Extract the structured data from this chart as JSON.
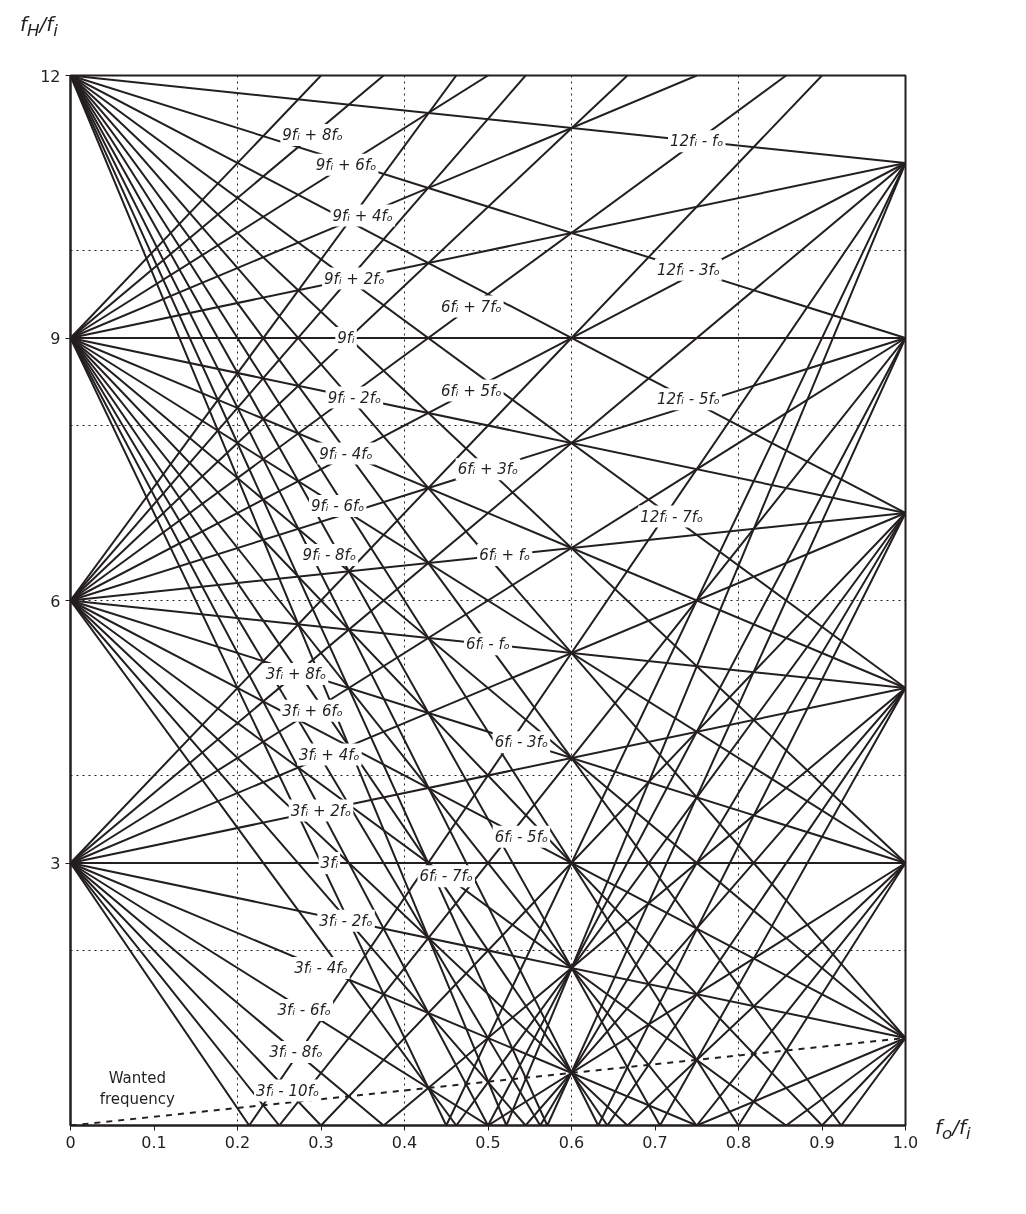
{
  "chart_data": {
    "type": "line",
    "xlabel": "f$_{o}$/f$_{i}$",
    "ylabel": "f$_{H}$/f$_{i}$",
    "xlim": [
      0,
      1
    ],
    "ylim": [
      0,
      12
    ],
    "xticks": [
      0,
      0.1,
      0.2,
      0.3,
      0.4,
      0.5,
      0.6,
      0.7,
      0.8,
      0.9,
      {
        "value": 1,
        "label": "1.0"
      }
    ],
    "yticks": [
      3,
      6,
      9,
      12
    ],
    "grid": false,
    "ref_lines": [
      {
        "axis": "x",
        "value": 0.2,
        "line_style": "dotted"
      },
      {
        "axis": "x",
        "value": 0.4,
        "line_style": "dotted"
      },
      {
        "axis": "x",
        "value": 0.6,
        "line_style": "dotted"
      },
      {
        "axis": "x",
        "value": 0.8,
        "line_style": "dotted"
      },
      {
        "axis": "y",
        "value": 2,
        "line_style": "dotted"
      },
      {
        "axis": "y",
        "value": 4,
        "line_style": "dotted"
      },
      {
        "axis": "y",
        "value": 6,
        "line_style": "dotted"
      },
      {
        "axis": "y",
        "value": 8,
        "line_style": "dotted"
      },
      {
        "axis": "y",
        "value": 10,
        "line_style": "dotted"
      }
    ],
    "series": [
      {
        "color": "#231f20",
        "x": [
          0,
          1
        ],
        "values": [
          0,
          1
        ],
        "line_style": "dashed"
      },
      {
        "color": "#231f20",
        "x": [
          0,
          0.214,
          1
        ],
        "values": [
          3,
          0,
          11
        ]
      },
      {
        "color": "#231f20",
        "x": [
          0,
          0.25,
          1
        ],
        "values": [
          3,
          0,
          9
        ]
      },
      {
        "color": "#231f20",
        "x": [
          0,
          0.3,
          1
        ],
        "values": [
          3,
          0,
          7
        ]
      },
      {
        "color": "#231f20",
        "x": [
          0,
          0.375,
          1
        ],
        "values": [
          3,
          0,
          5
        ]
      },
      {
        "color": "#231f20",
        "x": [
          0,
          0.5,
          1
        ],
        "values": [
          3,
          0,
          3
        ]
      },
      {
        "color": "#231f20",
        "x": [
          0,
          0.75,
          1
        ],
        "values": [
          3,
          0,
          1
        ]
      },
      {
        "color": "#231f20",
        "x": [
          0,
          1
        ],
        "values": [
          3,
          1
        ]
      },
      {
        "color": "#231f20",
        "x": [
          0,
          1
        ],
        "values": [
          3,
          3
        ]
      },
      {
        "color": "#231f20",
        "x": [
          0,
          1
        ],
        "values": [
          3,
          5
        ]
      },
      {
        "color": "#231f20",
        "x": [
          0,
          1
        ],
        "values": [
          3,
          7
        ]
      },
      {
        "color": "#231f20",
        "x": [
          0,
          1
        ],
        "values": [
          3,
          9
        ]
      },
      {
        "color": "#231f20",
        "x": [
          0,
          1
        ],
        "values": [
          3,
          11
        ]
      },
      {
        "color": "#231f20",
        "x": [
          0,
          0.9
        ],
        "values": [
          3,
          12
        ]
      },
      {
        "color": "#231f20",
        "x": [
          0,
          0.462,
          1
        ],
        "values": [
          6,
          0,
          7
        ]
      },
      {
        "color": "#231f20",
        "x": [
          0,
          0.545,
          1
        ],
        "values": [
          6,
          0,
          5
        ]
      },
      {
        "color": "#231f20",
        "x": [
          0,
          0.667,
          1
        ],
        "values": [
          6,
          0,
          3
        ]
      },
      {
        "color": "#231f20",
        "x": [
          0,
          0.857,
          1
        ],
        "values": [
          6,
          0,
          1
        ]
      },
      {
        "color": "#231f20",
        "x": [
          0,
          1
        ],
        "values": [
          6,
          1
        ]
      },
      {
        "color": "#231f20",
        "x": [
          0,
          1
        ],
        "values": [
          6,
          3
        ]
      },
      {
        "color": "#231f20",
        "x": [
          0,
          1
        ],
        "values": [
          6,
          5
        ]
      },
      {
        "color": "#231f20",
        "x": [
          0,
          1
        ],
        "values": [
          6,
          7
        ]
      },
      {
        "color": "#231f20",
        "x": [
          0,
          1
        ],
        "values": [
          6,
          9
        ]
      },
      {
        "color": "#231f20",
        "x": [
          0,
          1
        ],
        "values": [
          6,
          11
        ]
      },
      {
        "color": "#231f20",
        "x": [
          0,
          0.857
        ],
        "values": [
          6,
          12
        ]
      },
      {
        "color": "#231f20",
        "x": [
          0,
          0.667
        ],
        "values": [
          6,
          12
        ]
      },
      {
        "color": "#231f20",
        "x": [
          0,
          0.545
        ],
        "values": [
          6,
          12
        ]
      },
      {
        "color": "#231f20",
        "x": [
          0,
          0.462
        ],
        "values": [
          6,
          12
        ]
      },
      {
        "color": "#231f20",
        "x": [
          0,
          0.45,
          1
        ],
        "values": [
          9,
          0,
          11
        ]
      },
      {
        "color": "#231f20",
        "x": [
          0,
          0.5,
          1
        ],
        "values": [
          9,
          0,
          9
        ]
      },
      {
        "color": "#231f20",
        "x": [
          0,
          0.5625,
          1
        ],
        "values": [
          9,
          0,
          7
        ]
      },
      {
        "color": "#231f20",
        "x": [
          0,
          0.643,
          1
        ],
        "values": [
          9,
          0,
          5
        ]
      },
      {
        "color": "#231f20",
        "x": [
          0,
          0.75,
          1
        ],
        "values": [
          9,
          0,
          3
        ]
      },
      {
        "color": "#231f20",
        "x": [
          0,
          0.9,
          1
        ],
        "values": [
          9,
          0,
          1
        ]
      },
      {
        "color": "#231f20",
        "x": [
          0,
          1
        ],
        "values": [
          9,
          1
        ]
      },
      {
        "color": "#231f20",
        "x": [
          0,
          1
        ],
        "values": [
          9,
          3
        ]
      },
      {
        "color": "#231f20",
        "x": [
          0,
          1
        ],
        "values": [
          9,
          5
        ]
      },
      {
        "color": "#231f20",
        "x": [
          0,
          1
        ],
        "values": [
          9,
          7
        ]
      },
      {
        "color": "#231f20",
        "x": [
          0,
          1
        ],
        "values": [
          9,
          9
        ]
      },
      {
        "color": "#231f20",
        "x": [
          0,
          1
        ],
        "values": [
          9,
          11
        ]
      },
      {
        "color": "#231f20",
        "x": [
          0,
          0.75
        ],
        "values": [
          9,
          12
        ]
      },
      {
        "color": "#231f20",
        "x": [
          0,
          0.5
        ],
        "values": [
          9,
          12
        ]
      },
      {
        "color": "#231f20",
        "x": [
          0,
          0.375
        ],
        "values": [
          9,
          12
        ]
      },
      {
        "color": "#231f20",
        "x": [
          0,
          0.3
        ],
        "values": [
          9,
          12
        ]
      },
      {
        "color": "#231f20",
        "x": [
          0,
          0.522,
          1
        ],
        "values": [
          12,
          0,
          11
        ]
      },
      {
        "color": "#231f20",
        "x": [
          0,
          0.571,
          1
        ],
        "values": [
          12,
          0,
          9
        ]
      },
      {
        "color": "#231f20",
        "x": [
          0,
          0.632,
          1
        ],
        "values": [
          12,
          0,
          7
        ]
      },
      {
        "color": "#231f20",
        "x": [
          0,
          0.706,
          1
        ],
        "values": [
          12,
          0,
          5
        ]
      },
      {
        "color": "#231f20",
        "x": [
          0,
          0.8,
          1
        ],
        "values": [
          12,
          0,
          3
        ]
      },
      {
        "color": "#231f20",
        "x": [
          0,
          0.923,
          1
        ],
        "values": [
          12,
          0,
          1
        ]
      },
      {
        "color": "#231f20",
        "x": [
          0,
          1
        ],
        "values": [
          12,
          1
        ]
      },
      {
        "color": "#231f20",
        "x": [
          0,
          1
        ],
        "values": [
          12,
          3
        ]
      },
      {
        "color": "#231f20",
        "x": [
          0,
          1
        ],
        "values": [
          12,
          5
        ]
      },
      {
        "color": "#231f20",
        "x": [
          0,
          1
        ],
        "values": [
          12,
          7
        ]
      },
      {
        "color": "#231f20",
        "x": [
          0,
          1
        ],
        "values": [
          12,
          9
        ]
      },
      {
        "color": "#231f20",
        "x": [
          0,
          1
        ],
        "values": [
          12,
          11
        ]
      }
    ],
    "annotations": [
      {
        "text": "9fᵢ + 8fₒ",
        "x": 0.29,
        "y": 11.32
      },
      {
        "text": "9fᵢ + 6fₒ",
        "x": 0.33,
        "y": 10.98
      },
      {
        "text": "9fᵢ + 4fₒ",
        "x": 0.35,
        "y": 10.4
      },
      {
        "text": "9fᵢ + 2fₒ",
        "x": 0.34,
        "y": 9.68
      },
      {
        "text": "9fᵢ",
        "x": 0.33,
        "y": 9
      },
      {
        "text": "9fᵢ - 2fₒ",
        "x": 0.34,
        "y": 8.32
      },
      {
        "text": "9fᵢ - 4fₒ",
        "x": 0.33,
        "y": 7.68
      },
      {
        "text": "9fᵢ - 6fₒ",
        "x": 0.32,
        "y": 7.08
      },
      {
        "text": "9fᵢ - 8fₒ",
        "x": 0.31,
        "y": 6.52
      },
      {
        "text": "3fᵢ + 8fₒ",
        "x": 0.27,
        "y": 5.16
      },
      {
        "text": "3fᵢ + 6fₒ",
        "x": 0.29,
        "y": 4.74
      },
      {
        "text": "3fᵢ + 4fₒ",
        "x": 0.31,
        "y": 4.24
      },
      {
        "text": "3fᵢ + 2fₒ",
        "x": 0.3,
        "y": 3.6
      },
      {
        "text": "3fᵢ",
        "x": 0.31,
        "y": 3
      },
      {
        "text": "3fᵢ - 2fₒ",
        "x": 0.33,
        "y": 2.34
      },
      {
        "text": "3fᵢ - 4fₒ",
        "x": 0.3,
        "y": 1.8
      },
      {
        "text": "3fᵢ - 6fₒ",
        "x": 0.28,
        "y": 1.32
      },
      {
        "text": "3fᵢ - 8fₒ",
        "x": 0.27,
        "y": 0.84
      },
      {
        "text": "3fᵢ - 10fₒ",
        "x": 0.26,
        "y": 0.4
      },
      {
        "text": "6fᵢ + 7fₒ",
        "x": 0.48,
        "y": 9.36
      },
      {
        "text": "6fᵢ + 5fₒ",
        "x": 0.48,
        "y": 8.4
      },
      {
        "text": "6fᵢ + 3fₒ",
        "x": 0.5,
        "y": 7.5
      },
      {
        "text": "6fᵢ + fₒ",
        "x": 0.52,
        "y": 6.52
      },
      {
        "text": "6fᵢ - fₒ",
        "x": 0.5,
        "y": 5.5
      },
      {
        "text": "6fᵢ - 3fₒ",
        "x": 0.54,
        "y": 4.38
      },
      {
        "text": "6fᵢ - 5fₒ",
        "x": 0.54,
        "y": 3.3
      },
      {
        "text": "6fᵢ - 7fₒ",
        "x": 0.45,
        "y": 2.85
      },
      {
        "text": "12fᵢ - fₒ",
        "x": 0.75,
        "y": 11.25
      },
      {
        "text": "12fᵢ - 3fₒ",
        "x": 0.74,
        "y": 9.78
      },
      {
        "text": "12fᵢ - 5fₒ",
        "x": 0.74,
        "y": 8.3
      },
      {
        "text": "12fᵢ - 7fₒ",
        "x": 0.72,
        "y": 6.96
      },
      {
        "text": "Wanted\nfrequency",
        "x": 0.08,
        "y": 0.08
      }
    ]
  }
}
